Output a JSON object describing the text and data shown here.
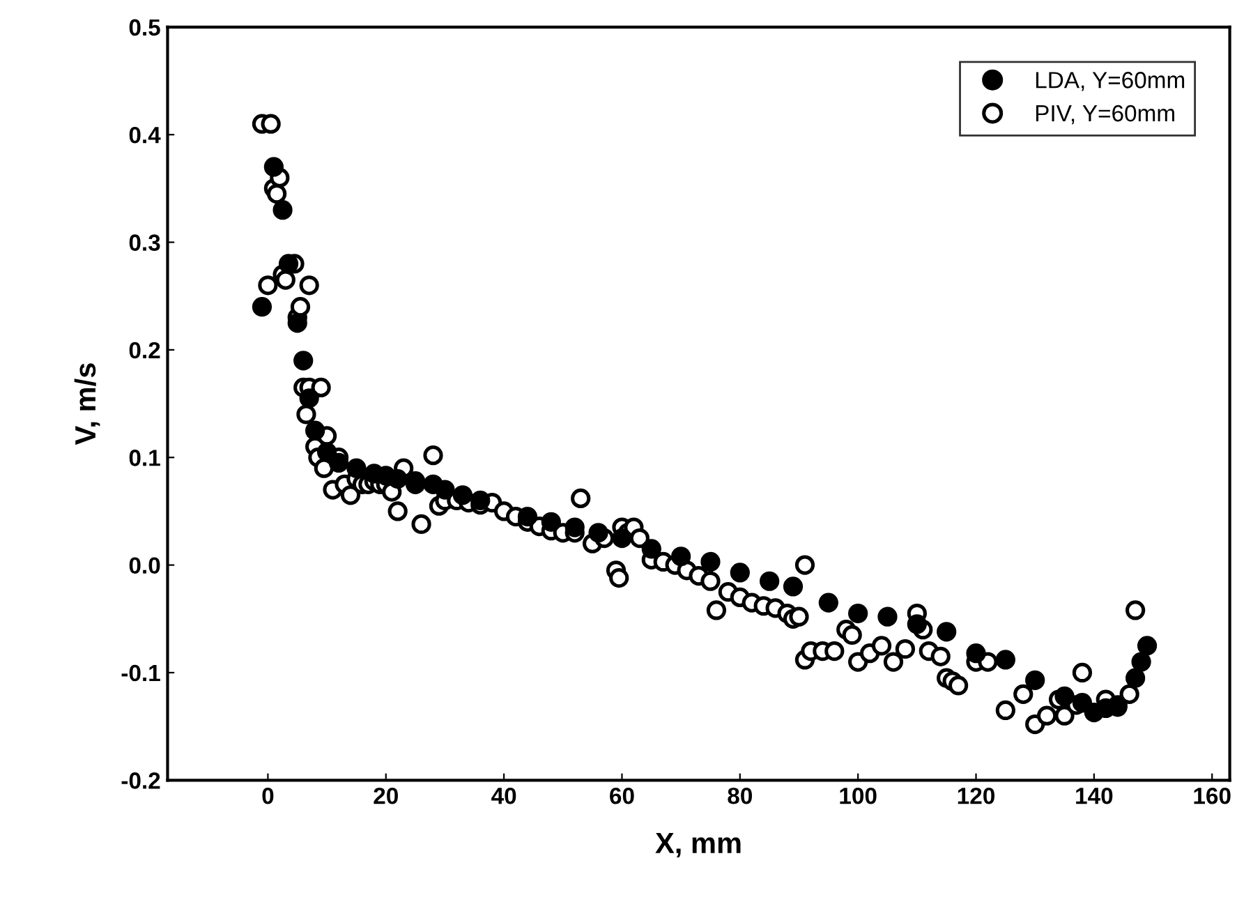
{
  "chart_data": {
    "type": "scatter",
    "xlabel": "X, mm",
    "ylabel": "V, m/s",
    "xlim": [
      -17,
      163
    ],
    "ylim": [
      -0.2,
      0.5
    ],
    "xticks": [
      0,
      20,
      40,
      60,
      80,
      100,
      120,
      140,
      160
    ],
    "yticks": [
      {
        "value": -0.2,
        "label": "-0.2"
      },
      {
        "value": -0.1,
        "label": "-0.1"
      },
      {
        "value": 0.0,
        "label": "0.0"
      },
      {
        "value": 0.1,
        "label": "0.1"
      },
      {
        "value": 0.2,
        "label": "0.2"
      },
      {
        "value": 0.3,
        "label": "0.3"
      },
      {
        "value": 0.4,
        "label": "0.4"
      },
      {
        "value": 0.5,
        "label": "0.5"
      }
    ],
    "grid": false,
    "legend": "top right",
    "series": [
      {
        "name": "LDA, Y=60mm",
        "color": "#000000",
        "marker": "circle",
        "x": [
          -1,
          1,
          2.5,
          3.5,
          5,
          6,
          7,
          8,
          10,
          12,
          15,
          18,
          20,
          22,
          25,
          28,
          30,
          33,
          36,
          40,
          44,
          48,
          52,
          56,
          60,
          65,
          70,
          75,
          80,
          85,
          89,
          95,
          100,
          105,
          110,
          115,
          120,
          125,
          130,
          135,
          138,
          140,
          142,
          144,
          146,
          147,
          148,
          149
        ],
        "values": [
          0.24,
          0.37,
          0.33,
          0.28,
          0.225,
          0.19,
          0.155,
          0.125,
          0.105,
          0.095,
          0.09,
          0.085,
          0.083,
          0.08,
          0.078,
          0.075,
          0.07,
          0.065,
          0.06,
          null,
          0.045,
          0.04,
          0.035,
          0.03,
          0.025,
          0.015,
          0.008,
          0.003,
          -0.007,
          -0.015,
          -0.02,
          -0.035,
          -0.045,
          -0.048,
          -0.055,
          -0.062,
          -0.082,
          -0.088,
          -0.107,
          -0.122,
          -0.128,
          -0.137,
          -0.133,
          -0.132,
          null,
          -0.105,
          -0.09,
          -0.075
        ]
      },
      {
        "name": "PIV, Y=60mm",
        "color": "#000000",
        "marker": "circle",
        "x": [
          -1,
          0,
          0.5,
          1,
          1.5,
          2,
          2.5,
          3,
          4.5,
          5,
          5.5,
          6,
          6.5,
          7,
          7,
          8,
          8.5,
          9,
          9.5,
          10,
          11,
          12,
          13,
          14,
          15,
          16,
          17,
          18,
          19,
          20,
          21,
          22,
          23,
          25,
          26,
          28,
          29,
          30,
          32,
          34,
          36,
          38,
          40,
          42,
          44,
          46,
          48,
          50,
          52,
          53,
          55,
          57,
          59,
          59.5,
          60,
          61,
          62,
          63,
          65,
          67,
          69,
          71,
          73,
          75,
          76,
          78,
          80,
          82,
          84,
          86,
          88,
          89,
          90,
          91,
          91,
          92,
          94,
          96,
          98,
          99,
          100,
          102,
          104,
          106,
          108,
          110,
          111,
          112,
          114,
          115,
          116,
          117,
          120,
          122,
          125,
          128,
          130,
          132,
          134,
          135,
          137,
          138,
          142,
          144,
          146,
          147
        ],
        "values": [
          0.41,
          0.26,
          0.41,
          0.35,
          0.345,
          0.36,
          0.27,
          0.265,
          0.28,
          0.23,
          0.24,
          0.165,
          0.14,
          0.165,
          0.26,
          0.11,
          0.1,
          0.165,
          0.09,
          0.12,
          0.07,
          0.1,
          0.075,
          0.065,
          0.08,
          0.075,
          0.075,
          0.078,
          0.075,
          0.075,
          0.068,
          0.05,
          0.09,
          0.075,
          0.038,
          0.102,
          0.055,
          0.06,
          0.06,
          0.058,
          0.056,
          0.058,
          0.05,
          0.045,
          0.04,
          0.036,
          0.032,
          0.03,
          0.03,
          0.062,
          0.02,
          0.025,
          -0.005,
          -0.012,
          0.035,
          0.03,
          0.035,
          0.025,
          0.005,
          0.003,
          0.0,
          -0.005,
          -0.01,
          -0.015,
          -0.042,
          -0.025,
          -0.03,
          -0.035,
          -0.038,
          -0.04,
          -0.045,
          -0.05,
          -0.048,
          0.0,
          -0.088,
          -0.08,
          -0.08,
          -0.08,
          -0.06,
          -0.065,
          -0.09,
          -0.082,
          -0.075,
          -0.09,
          -0.078,
          -0.045,
          -0.06,
          -0.08,
          -0.085,
          -0.105,
          -0.108,
          -0.112,
          -0.09,
          -0.09,
          -0.135,
          -0.12,
          -0.148,
          -0.14,
          -0.125,
          -0.14,
          -0.13,
          -0.1,
          -0.125,
          -0.13,
          -0.12,
          -0.042
        ]
      }
    ]
  }
}
